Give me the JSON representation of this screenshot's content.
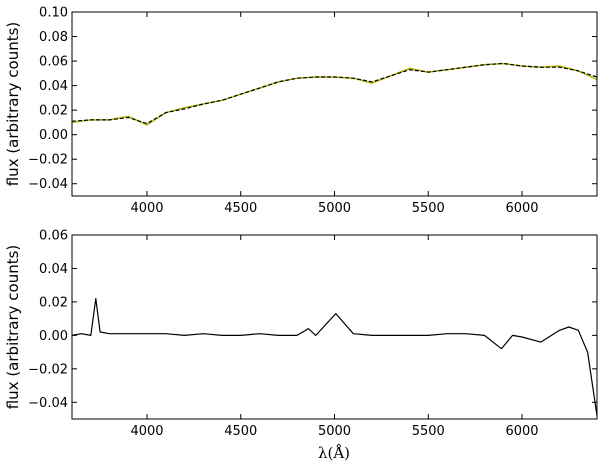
{
  "chart_data": [
    {
      "type": "line",
      "ylabel": "flux (arbitrary counts)",
      "xlim": [
        3600,
        6400
      ],
      "ylim": [
        -0.05,
        0.1
      ],
      "xticks": [
        "4000",
        "4500",
        "5000",
        "5500",
        "6000"
      ],
      "yticks": [
        "0.10",
        "0.08",
        "0.06",
        "0.04",
        "0.02",
        "0.00",
        "−0.02",
        "−0.04"
      ],
      "series": [
        {
          "style": "solid",
          "color": "#b5b700",
          "x": [
            3600,
            3700,
            3800,
            3900,
            4000,
            4100,
            4200,
            4300,
            4400,
            4500,
            4600,
            4700,
            4800,
            4900,
            5000,
            5100,
            5200,
            5300,
            5400,
            5500,
            5600,
            5700,
            5800,
            5900,
            6000,
            6100,
            6200,
            6300,
            6400
          ],
          "y": [
            0.01,
            0.012,
            0.012,
            0.015,
            0.008,
            0.018,
            0.022,
            0.025,
            0.028,
            0.033,
            0.038,
            0.043,
            0.046,
            0.047,
            0.047,
            0.046,
            0.042,
            0.048,
            0.054,
            0.051,
            0.053,
            0.055,
            0.057,
            0.058,
            0.056,
            0.055,
            0.056,
            0.052,
            0.045
          ]
        },
        {
          "style": "dashed",
          "color": "#000000",
          "x": [
            3600,
            3700,
            3800,
            3900,
            4000,
            4100,
            4200,
            4300,
            4400,
            4500,
            4600,
            4700,
            4800,
            4900,
            5000,
            5100,
            5200,
            5300,
            5400,
            5500,
            5600,
            5700,
            5800,
            5900,
            6000,
            6100,
            6200,
            6300,
            6400
          ],
          "y": [
            0.011,
            0.012,
            0.012,
            0.014,
            0.009,
            0.018,
            0.021,
            0.025,
            0.028,
            0.033,
            0.038,
            0.043,
            0.046,
            0.047,
            0.047,
            0.046,
            0.043,
            0.048,
            0.053,
            0.051,
            0.053,
            0.055,
            0.057,
            0.058,
            0.056,
            0.055,
            0.055,
            0.052,
            0.047
          ]
        }
      ]
    },
    {
      "type": "line",
      "xlabel": "λ(Å)",
      "ylabel": "flux (arbitrary counts)",
      "xlim": [
        3600,
        6400
      ],
      "ylim": [
        -0.05,
        0.06
      ],
      "xticks": [
        "4000",
        "4500",
        "5000",
        "5500",
        "6000"
      ],
      "yticks": [
        "0.06",
        "0.04",
        "0.02",
        "0.00",
        "−0.02",
        "−0.04"
      ],
      "series": [
        {
          "color": "#000000",
          "x": [
            3600,
            3650,
            3700,
            3727,
            3750,
            3800,
            3900,
            4000,
            4100,
            4200,
            4300,
            4400,
            4500,
            4600,
            4700,
            4800,
            4861,
            4900,
            5007,
            5100,
            5200,
            5300,
            5400,
            5500,
            5600,
            5700,
            5800,
            5890,
            5950,
            6000,
            6100,
            6200,
            6250,
            6300,
            6350,
            6400
          ],
          "y": [
            0.0,
            0.001,
            0.0,
            0.022,
            0.002,
            0.001,
            0.001,
            0.001,
            0.001,
            0.0,
            0.001,
            0.0,
            0.0,
            0.001,
            0.0,
            0.0,
            0.004,
            0.0,
            0.013,
            0.001,
            0.0,
            0.0,
            0.0,
            0.0,
            0.001,
            0.001,
            0.0,
            -0.008,
            0.0,
            -0.001,
            -0.004,
            0.003,
            0.005,
            0.003,
            -0.01,
            -0.048
          ]
        }
      ]
    }
  ]
}
